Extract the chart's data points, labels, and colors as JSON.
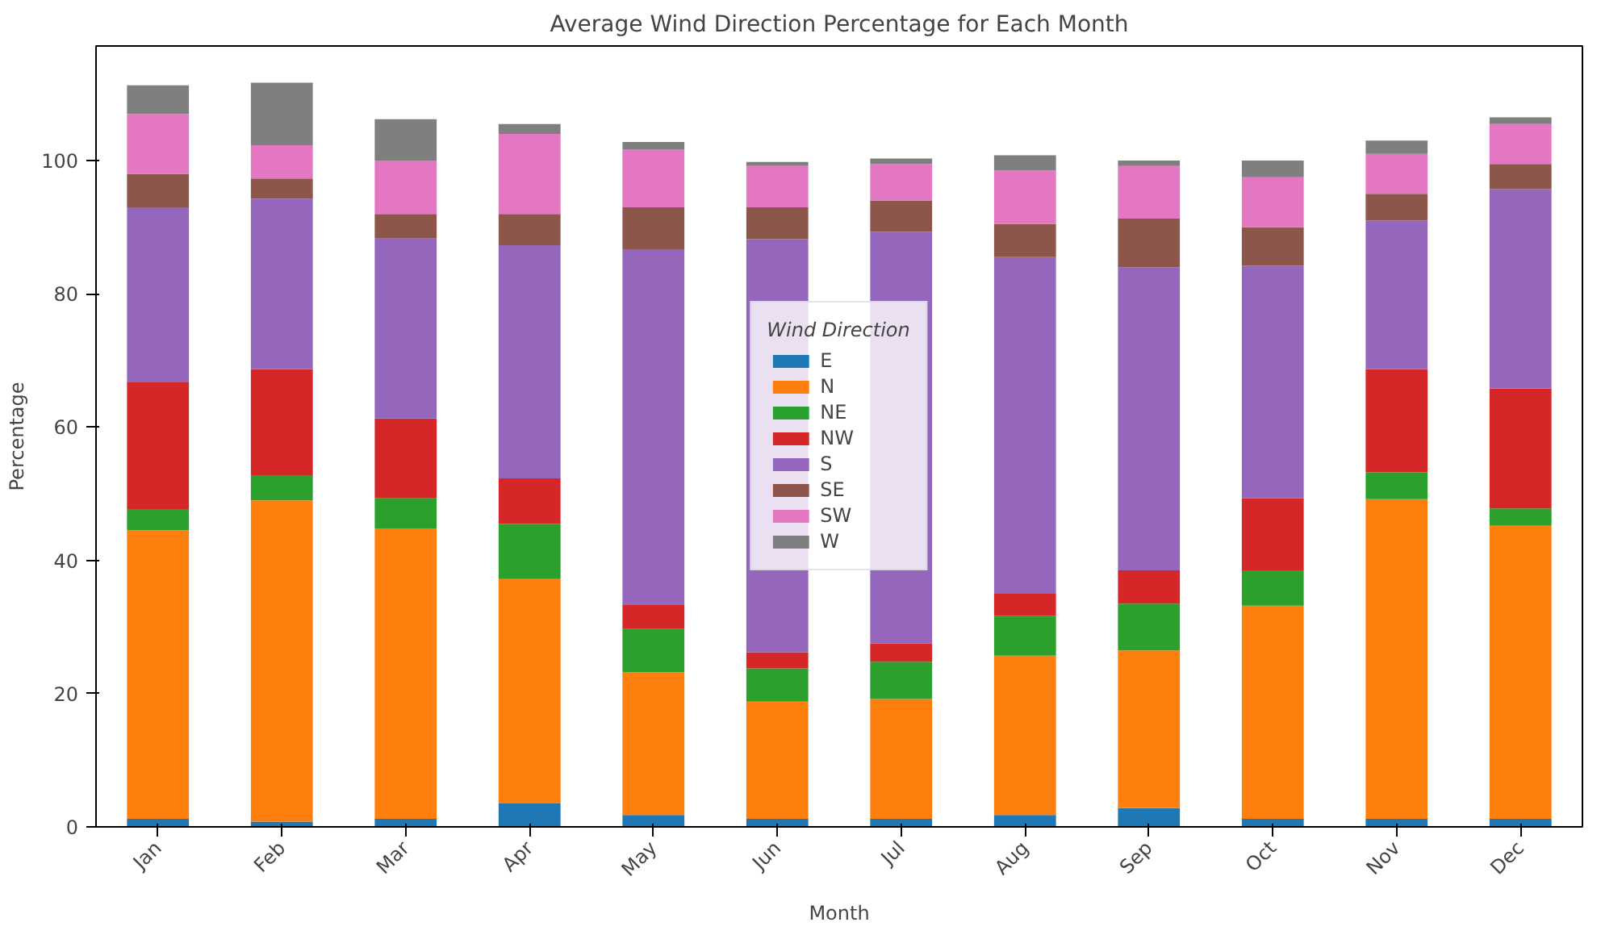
{
  "chart_data": {
    "type": "bar",
    "stacked": true,
    "title": "Average Wind Direction Percentage for Each Month",
    "xlabel": "Month",
    "ylabel": "Percentage",
    "legend_title": "Wind Direction",
    "legend": "center",
    "grid": false,
    "categories": [
      "Jan",
      "Feb",
      "Mar",
      "Apr",
      "May",
      "Jun",
      "Jul",
      "Aug",
      "Sep",
      "Oct",
      "Nov",
      "Dec"
    ],
    "ylim": [
      0,
      117.2
    ],
    "yticks": [
      0,
      20,
      40,
      60,
      80,
      100
    ],
    "series": [
      {
        "name": "E",
        "color": "#1f77b4",
        "values": [
          1.2,
          0.8,
          1.2,
          3.5,
          1.8,
          1.2,
          1.2,
          1.8,
          2.8,
          1.2,
          1.2,
          1.2
        ]
      },
      {
        "name": "N",
        "color": "#ff7f0e",
        "values": [
          43.3,
          48.2,
          43.6,
          33.7,
          21.4,
          17.6,
          18,
          23.9,
          23.7,
          32,
          48,
          44
        ]
      },
      {
        "name": "NE",
        "color": "#2ca02c",
        "values": [
          3.2,
          3.8,
          4.5,
          8.3,
          6.5,
          5,
          5.6,
          6,
          7,
          5.3,
          4,
          2.6
        ]
      },
      {
        "name": "NW",
        "color": "#d62728",
        "values": [
          19,
          15.9,
          12,
          6.8,
          3.6,
          2.4,
          2.7,
          3.3,
          5,
          10.8,
          15.5,
          18
        ]
      },
      {
        "name": "S",
        "color": "#9467bd",
        "values": [
          26.3,
          25.6,
          27,
          35,
          53.4,
          62,
          61.8,
          50.5,
          45.5,
          34.9,
          22.3,
          29.9
        ]
      },
      {
        "name": "SE",
        "color": "#8c564b",
        "values": [
          5,
          3,
          3.7,
          4.7,
          6.3,
          4.8,
          4.7,
          5,
          7.3,
          5.8,
          4,
          3.8
        ]
      },
      {
        "name": "SW",
        "color": "#e377c2",
        "values": [
          9,
          5,
          8,
          12,
          8.7,
          6.2,
          5.5,
          8,
          7.9,
          7.5,
          6,
          6
        ]
      },
      {
        "name": "W",
        "color": "#7f7f7f",
        "values": [
          4.3,
          9.4,
          6.2,
          1.5,
          1.1,
          0.6,
          0.8,
          2.3,
          0.8,
          2.5,
          2,
          1
        ]
      }
    ]
  }
}
